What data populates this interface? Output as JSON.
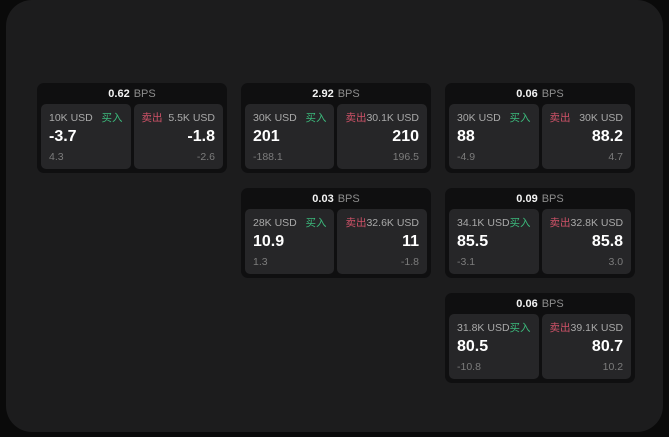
{
  "labels": {
    "bps_unit": "BPS",
    "buy": "买入",
    "sell": "卖出"
  },
  "colors": {
    "buy_green": "#3cba7c",
    "sell_red": "#cf5268",
    "panel_bg": "#1c1c1d",
    "card_bg": "#0f0f10",
    "subpanel_bg": "#262628"
  },
  "cards": [
    {
      "bps": "0.62",
      "buy": {
        "amount": "10K USD",
        "value": "-3.7",
        "sub": "4.3"
      },
      "sell": {
        "amount": "5.5K USD",
        "value": "-1.8",
        "sub": "-2.6"
      }
    },
    {
      "bps": "2.92",
      "buy": {
        "amount": "30K USD",
        "value": "201",
        "sub": "-188.1"
      },
      "sell": {
        "amount": "30.1K USD",
        "value": "210",
        "sub": "196.5"
      }
    },
    {
      "bps": "0.06",
      "buy": {
        "amount": "30K USD",
        "value": "88",
        "sub": "-4.9"
      },
      "sell": {
        "amount": "30K USD",
        "value": "88.2",
        "sub": "4.7"
      }
    },
    {
      "bps": "0.03",
      "buy": {
        "amount": "28K USD",
        "value": "10.9",
        "sub": "1.3"
      },
      "sell": {
        "amount": "32.6K USD",
        "value": "11",
        "sub": "-1.8"
      }
    },
    {
      "bps": "0.09",
      "buy": {
        "amount": "34.1K USD",
        "value": "85.5",
        "sub": "-3.1"
      },
      "sell": {
        "amount": "32.8K USD",
        "value": "85.8",
        "sub": "3.0"
      }
    },
    {
      "bps": "0.06",
      "buy": {
        "amount": "31.8K USD",
        "value": "80.5",
        "sub": "-10.8"
      },
      "sell": {
        "amount": "39.1K USD",
        "value": "80.7",
        "sub": "10.2"
      }
    }
  ]
}
